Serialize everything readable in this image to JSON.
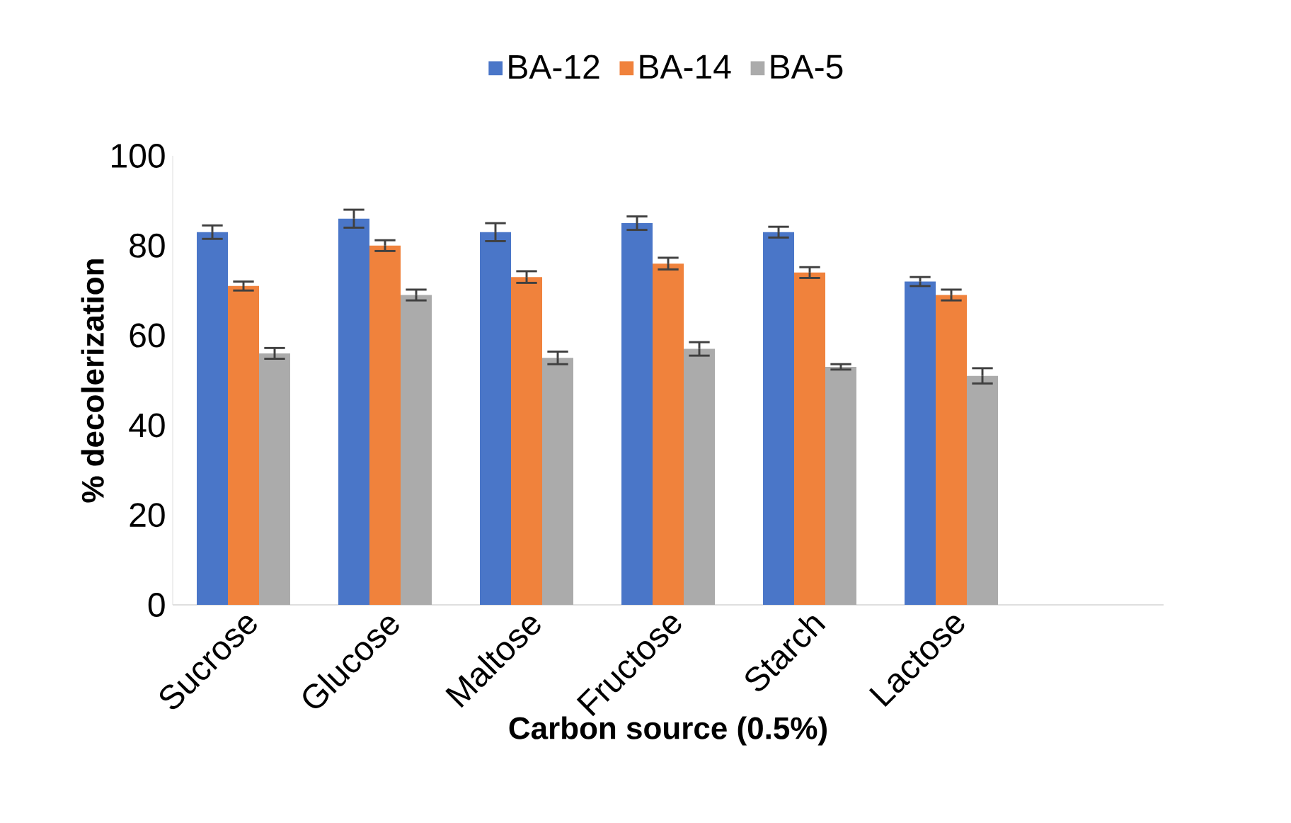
{
  "chart_data": {
    "type": "bar",
    "xlabel": "Carbon source (0.5%)",
    "ylabel": "% decolerization",
    "categories": [
      "Sucrose",
      "Glucose",
      "Maltose",
      "Fructose",
      "Starch",
      "Lactose",
      null
    ],
    "series": [
      {
        "name": "BA-12",
        "color": "#4a76c8",
        "values": [
          83,
          86,
          83,
          85,
          83,
          72,
          null
        ],
        "errors": [
          1.5,
          2,
          2,
          1.5,
          1.2,
          1,
          null
        ]
      },
      {
        "name": "BA-14",
        "color": "#f0823c",
        "values": [
          71,
          80,
          73,
          76,
          74,
          69,
          null
        ],
        "errors": [
          1,
          1.2,
          1.3,
          1.3,
          1.2,
          1.2,
          null
        ]
      },
      {
        "name": "BA-5",
        "color": "#ababab",
        "values": [
          56,
          69,
          55,
          57,
          53,
          51,
          null
        ],
        "errors": [
          1.2,
          1.2,
          1.4,
          1.5,
          0.6,
          1.7,
          null
        ]
      }
    ],
    "ylim": [
      0,
      100
    ],
    "yticks": [
      0,
      20,
      40,
      60,
      80,
      100
    ],
    "grid": false,
    "legend": "top"
  }
}
